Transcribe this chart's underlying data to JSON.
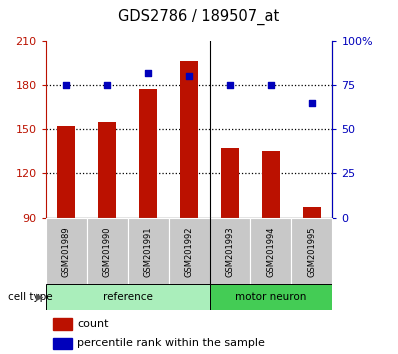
{
  "title": "GDS2786 / 189507_at",
  "samples": [
    "GSM201989",
    "GSM201990",
    "GSM201991",
    "GSM201992",
    "GSM201993",
    "GSM201994",
    "GSM201995"
  ],
  "bar_values": [
    152,
    155,
    177,
    196,
    137,
    135,
    97
  ],
  "percentile_values": [
    75,
    75,
    82,
    80,
    75,
    75,
    65
  ],
  "ylim_left": [
    90,
    210
  ],
  "ylim_right": [
    0,
    100
  ],
  "yticks_left": [
    90,
    120,
    150,
    180,
    210
  ],
  "yticks_right": [
    0,
    25,
    50,
    75,
    100
  ],
  "bar_color": "#bb1100",
  "percentile_color": "#0000bb",
  "ref_label": "reference",
  "motor_label": "motor neuron",
  "ref_color": "#aaeebb",
  "motor_color": "#44cc55",
  "cell_type_label": "cell type",
  "legend_count": "count",
  "legend_percentile": "percentile rank within the sample",
  "tick_bg": "#c8c8c8",
  "n_ref": 4,
  "n_motor": 3
}
